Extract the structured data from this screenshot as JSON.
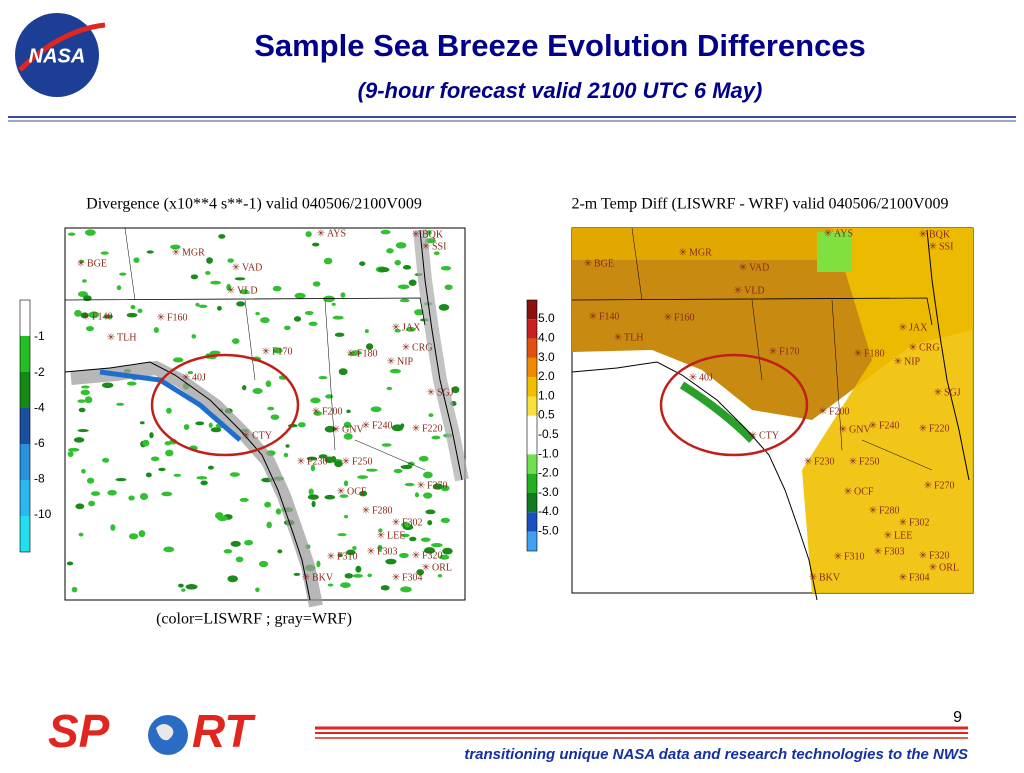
{
  "header": {
    "logo": "NASA",
    "title": "Sample Sea Breeze Evolution Differences",
    "subtitle": "(9-hour forecast valid 2100 UTC 6 May)"
  },
  "left_panel": {
    "title": "Divergence (x10**4 s**-1) valid 040506/2100V009",
    "caption": "(color=LISWRF ; gray=WRF)",
    "colorbar": [
      "-1",
      "-2",
      "-4",
      "-6",
      "-8",
      "-10"
    ]
  },
  "right_panel": {
    "title": "2-m Temp Diff (LISWRF - WRF) valid 040506/2100V009",
    "colorbar": [
      "5.0",
      "4.0",
      "3.0",
      "2.0",
      "1.0",
      "0.5",
      "-0.5",
      "-1.0",
      "-2.0",
      "-3.0",
      "-4.0",
      "-5.0"
    ]
  },
  "stations": [
    "AYS",
    "BQK",
    "SSI",
    "MGR",
    "BGE",
    "VAD",
    "VLD",
    "F140",
    "F160",
    "TLH",
    "JAX",
    "F170",
    "CRG",
    "F180",
    "NIP",
    "40J",
    "SGJ",
    "F200",
    "GNV",
    "F240",
    "F220",
    "CTY",
    "F230",
    "F250",
    "F270",
    "OCF",
    "F280",
    "F302",
    "LEE",
    "F310",
    "F303",
    "F320",
    "ORL",
    "BKV",
    "F304"
  ],
  "footer": {
    "logo_left": "SP",
    "logo_right": "RT",
    "page_number": "9",
    "tagline": "transitioning unique NASA data and research technologies to the NWS"
  }
}
